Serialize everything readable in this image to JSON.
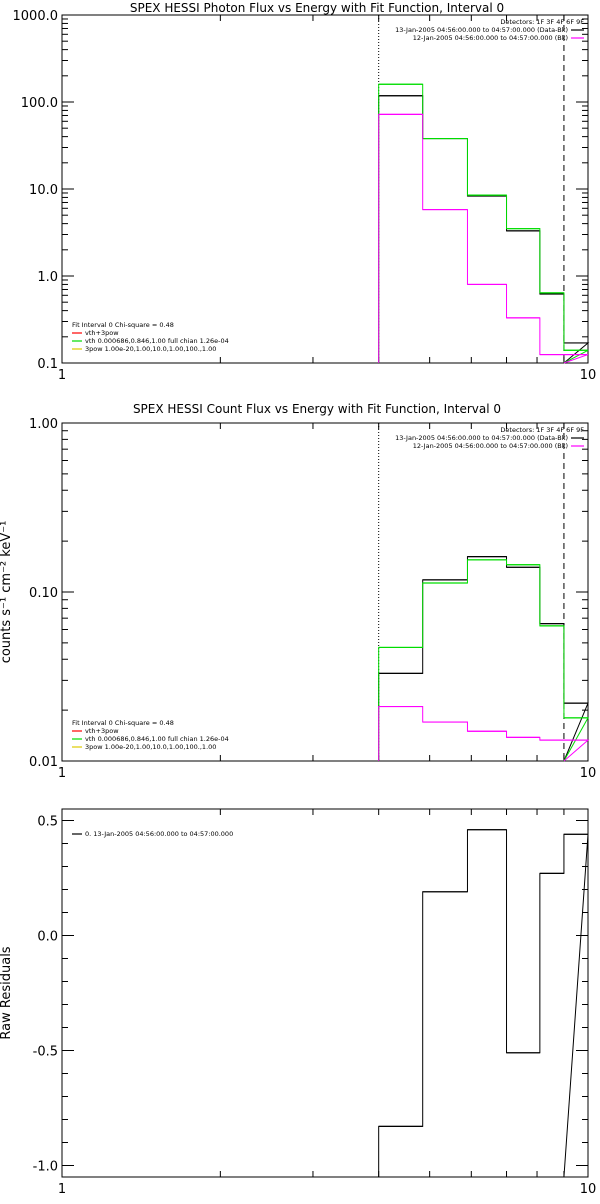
{
  "chart_data": [
    {
      "type": "line",
      "title": "SPEX HESSI Photon Flux vs Energy with Fit Function, Interval 0",
      "xlabel": "",
      "ylabel": "",
      "xscale": "log",
      "yscale": "log",
      "xlim": [
        1,
        10
      ],
      "ylim": [
        0.1,
        1000
      ],
      "xticks": [
        "1",
        "10"
      ],
      "yticks": [
        {
          "value": 1000,
          "label": "1000.0"
        },
        {
          "value": 100,
          "label": "100.0"
        },
        {
          "value": 10,
          "label": "10.0"
        },
        {
          "value": 1,
          "label": "1.0"
        },
        {
          "value": 0.1,
          "label": "0.1"
        }
      ],
      "bin_edges": [
        4.0,
        4.85,
        5.9,
        7.0,
        8.1,
        9.0
      ],
      "series": [
        {
          "color": "#000000",
          "values": [
            118,
            38,
            8.3,
            3.3,
            0.62,
            0.17
          ]
        },
        {
          "color": "#00dd00",
          "values": [
            160,
            38,
            8.5,
            3.5,
            0.64,
            0.14
          ]
        },
        {
          "color": "#ff00ff",
          "values": [
            72,
            5.8,
            0.8,
            0.33,
            0.125,
            0.125
          ]
        }
      ],
      "vlines": [
        {
          "x": 4.0,
          "style": "dotted"
        },
        {
          "x": 9.0,
          "style": "dashed"
        }
      ],
      "legend_right": {
        "position": "top-right",
        "header": "Detectors: 1F 3F 4F 6F 9F",
        "entries": [
          {
            "text": "13-Jan-2005 04:56:00.000 to 04:57:00.000 (Data-Bk)",
            "color": "#000000"
          },
          {
            "text": "12-Jan-2005 04:56:00.000 to 04:57:00.000 (Bk)",
            "color": "#ff00ff"
          }
        ]
      },
      "legend_left": {
        "position": "bottom-left",
        "header": "Fit Interval 0   Chi-square = 0.48",
        "entries": [
          {
            "text": "vth+3pow",
            "color": "#ff0000"
          },
          {
            "text": "vth 0.000686,0.846,1.00  full chian 1.26e-04",
            "color": "#00dd00"
          },
          {
            "text": "3pow 1.00e-20,1.00,10.0,1.00,100.,1.00",
            "color": "#ddcc00"
          }
        ]
      }
    },
    {
      "type": "line",
      "title": "SPEX HESSI Count Flux vs Energy with Fit Function, Interval 0",
      "xlabel": "",
      "ylabel": "counts s⁻¹ cm⁻² keV⁻¹",
      "xscale": "log",
      "yscale": "log",
      "xlim": [
        1,
        10
      ],
      "ylim": [
        0.01,
        1
      ],
      "xticks": [
        "1",
        "10"
      ],
      "yticks": [
        {
          "value": 1,
          "label": "1.00"
        },
        {
          "value": 0.1,
          "label": "0.10"
        },
        {
          "value": 0.01,
          "label": "0.01"
        }
      ],
      "bin_edges": [
        4.0,
        4.85,
        5.9,
        7.0,
        8.1,
        9.0
      ],
      "series": [
        {
          "color": "#000000",
          "values": [
            0.033,
            0.118,
            0.162,
            0.14,
            0.065,
            0.022
          ]
        },
        {
          "color": "#00dd00",
          "values": [
            0.047,
            0.113,
            0.155,
            0.145,
            0.063,
            0.018
          ]
        },
        {
          "color": "#ff00ff",
          "values": [
            0.021,
            0.017,
            0.015,
            0.0138,
            0.0133,
            0.0133
          ]
        }
      ],
      "vlines": [
        {
          "x": 4.0,
          "style": "dotted"
        },
        {
          "x": 9.0,
          "style": "dashed"
        }
      ],
      "legend_right": {
        "position": "top-right",
        "header": "Detectors: 1F 3F 4F 6F 9F",
        "entries": [
          {
            "text": "13-Jan-2005 04:56:00.000 to 04:57:00.000 (Data-Bk)",
            "color": "#000000"
          },
          {
            "text": "12-Jan-2005 04:56:00.000 to 04:57:00.000 (Bk)",
            "color": "#ff00ff"
          }
        ]
      },
      "legend_left": {
        "position": "bottom-left",
        "header": "Fit Interval 0   Chi-square = 0.48",
        "entries": [
          {
            "text": "vth+3pow",
            "color": "#ff0000"
          },
          {
            "text": "vth 0.000686,0.846,1.00  full chian 1.26e-04",
            "color": "#00dd00"
          },
          {
            "text": "3pow 1.00e-20,1.00,10.0,1.00,100.,1.00",
            "color": "#ddcc00"
          }
        ]
      }
    },
    {
      "type": "line",
      "title": "",
      "xlabel": "",
      "ylabel": "Raw Residuals",
      "xscale": "log",
      "yscale": "linear",
      "xlim": [
        1,
        10
      ],
      "ylim": [
        -1.05,
        0.55
      ],
      "xticks": [
        "1",
        "10"
      ],
      "yticks": [
        {
          "value": 0.5,
          "label": "0.5"
        },
        {
          "value": 0.0,
          "label": "0.0"
        },
        {
          "value": -0.5,
          "label": "-0.5"
        },
        {
          "value": -1.0,
          "label": "-1.0"
        }
      ],
      "bin_edges": [
        4.0,
        4.85,
        5.9,
        7.0,
        8.1,
        9.0
      ],
      "series": [
        {
          "color": "#000000",
          "values": [
            -0.83,
            0.19,
            0.46,
            -0.51,
            0.27,
            0.44
          ]
        }
      ],
      "vlines": [],
      "legend_left": {
        "position": "top-left",
        "header": "",
        "entries": [
          {
            "text": "0. 13-Jan-2005 04:56:00.000 to 04:57:00.000",
            "color": "#000000"
          }
        ]
      }
    }
  ]
}
